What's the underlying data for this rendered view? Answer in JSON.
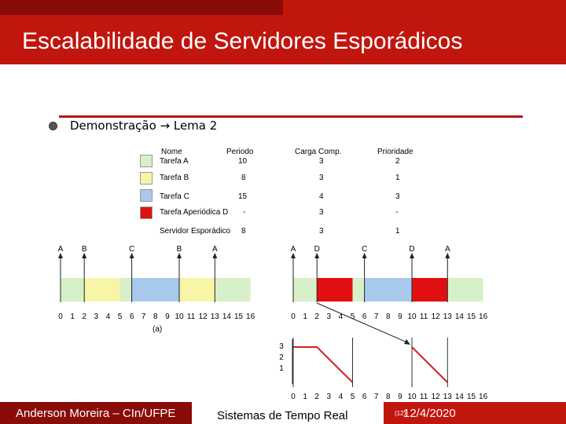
{
  "slide": {
    "title": "Escalabilidade de Servidores Esporádicos",
    "bullet": "Demonstração → Lema 2"
  },
  "table": {
    "headers": {
      "name": "Nome",
      "period": "Periodo",
      "load": "Carga Comp.",
      "priority": "Prioridade"
    },
    "rows": [
      {
        "name": "Tarefa A",
        "period": "10",
        "load": "3",
        "priority": "2",
        "color": "#d8f0c8"
      },
      {
        "name": "Tarefa B",
        "period": "8",
        "load": "3",
        "priority": "1",
        "color": "#f8f4a8"
      },
      {
        "name": "Tarefa C",
        "period": "15",
        "load": "4",
        "priority": "3",
        "color": "#a8c8ec"
      },
      {
        "name": "Tarefa Aperiódica D",
        "period": "-",
        "load": "3",
        "priority": "-",
        "color": "#e01010"
      },
      {
        "name": "Servidor Esporádico",
        "period": "8",
        "load": "3",
        "priority": "1",
        "color": null
      }
    ]
  },
  "diagram_a": {
    "caption": "(a)",
    "ticks": [
      "0",
      "1",
      "2",
      "3",
      "4",
      "5",
      "6",
      "7",
      "8",
      "9",
      "10",
      "11",
      "12",
      "13",
      "14",
      "15",
      "16"
    ],
    "arrivals": [
      {
        "label": "A",
        "t": 0
      },
      {
        "label": "B",
        "t": 2
      },
      {
        "label": "C",
        "t": 6
      },
      {
        "label": "B",
        "t": 10
      },
      {
        "label": "A",
        "t": 13
      }
    ],
    "segments": [
      {
        "from": 0,
        "to": 2,
        "task": "A"
      },
      {
        "from": 2,
        "to": 5,
        "task": "B"
      },
      {
        "from": 5,
        "to": 6,
        "task": "A"
      },
      {
        "from": 6,
        "to": 10,
        "task": "C"
      },
      {
        "from": 10,
        "to": 13,
        "task": "B"
      },
      {
        "from": 13,
        "to": 16,
        "task": "A"
      }
    ]
  },
  "diagram_b": {
    "ticks": [
      "0",
      "1",
      "2",
      "3",
      "4",
      "5",
      "6",
      "7",
      "8",
      "9",
      "10",
      "11",
      "12",
      "13",
      "14",
      "15",
      "16"
    ],
    "arrivals": [
      {
        "label": "A",
        "t": 0
      },
      {
        "label": "D",
        "t": 2
      },
      {
        "label": "C",
        "t": 6
      },
      {
        "label": "D",
        "t": 10
      },
      {
        "label": "A",
        "t": 13
      }
    ],
    "segments": [
      {
        "from": 0,
        "to": 2,
        "task": "A"
      },
      {
        "from": 2,
        "to": 5,
        "task": "D"
      },
      {
        "from": 5,
        "to": 6,
        "task": "A"
      },
      {
        "from": 6,
        "to": 10,
        "task": "C"
      },
      {
        "from": 10,
        "to": 13,
        "task": "D"
      },
      {
        "from": 13,
        "to": 16,
        "task": "A"
      }
    ],
    "capacity_labels": [
      "3",
      "2",
      "1"
    ],
    "capacity_max": 3,
    "capacity_curve": [
      [
        [
          0,
          3
        ],
        [
          2,
          3
        ],
        [
          5,
          0
        ]
      ],
      [
        [
          10,
          3
        ],
        [
          13,
          0
        ]
      ]
    ]
  },
  "task_colors": {
    "A": "#d8f0c8",
    "B": "#f8f4a8",
    "C": "#a8c8ec",
    "D": "#e01010"
  },
  "footer": {
    "author": "Anderson Moreira – CIn/UFPE",
    "course": "Sistemas de Tempo Real",
    "slide_no": "(12)",
    "date": "12/4/2020"
  }
}
